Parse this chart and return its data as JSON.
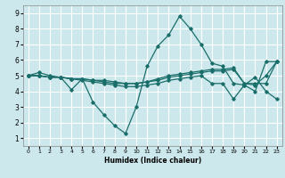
{
  "xlabel": "Humidex (Indice chaleur)",
  "bg_color": "#cce8ec",
  "grid_color": "#ffffff",
  "line_color": "#1a6e6a",
  "xlim": [
    -0.5,
    23.5
  ],
  "ylim": [
    0.5,
    9.5
  ],
  "xticks": [
    0,
    1,
    2,
    3,
    4,
    5,
    6,
    7,
    8,
    9,
    10,
    11,
    12,
    13,
    14,
    15,
    16,
    17,
    18,
    19,
    20,
    21,
    22,
    23
  ],
  "yticks": [
    1,
    2,
    3,
    4,
    5,
    6,
    7,
    8,
    9
  ],
  "series": [
    [
      5.0,
      5.2,
      5.0,
      4.9,
      4.1,
      4.8,
      3.3,
      2.5,
      1.8,
      1.3,
      3.0,
      5.6,
      6.9,
      7.6,
      8.8,
      8.0,
      7.0,
      5.8,
      5.6,
      4.5,
      4.4,
      4.0,
      5.9,
      5.9
    ],
    [
      5.0,
      5.0,
      4.9,
      4.9,
      4.8,
      4.8,
      4.7,
      4.7,
      4.6,
      4.5,
      4.5,
      4.6,
      4.8,
      5.0,
      5.1,
      5.2,
      5.3,
      5.4,
      5.4,
      5.5,
      4.5,
      4.4,
      5.0,
      5.9
    ],
    [
      5.0,
      5.0,
      4.9,
      4.9,
      4.8,
      4.8,
      4.7,
      4.6,
      4.5,
      4.5,
      4.5,
      4.6,
      4.7,
      4.9,
      5.0,
      5.1,
      5.2,
      5.3,
      5.3,
      5.4,
      4.5,
      4.5,
      4.5,
      5.9
    ],
    [
      5.0,
      5.0,
      4.9,
      4.9,
      4.8,
      4.7,
      4.6,
      4.5,
      4.4,
      4.3,
      4.3,
      4.4,
      4.5,
      4.7,
      4.8,
      4.9,
      5.0,
      4.5,
      4.5,
      3.5,
      4.4,
      4.9,
      4.0,
      3.5
    ]
  ]
}
